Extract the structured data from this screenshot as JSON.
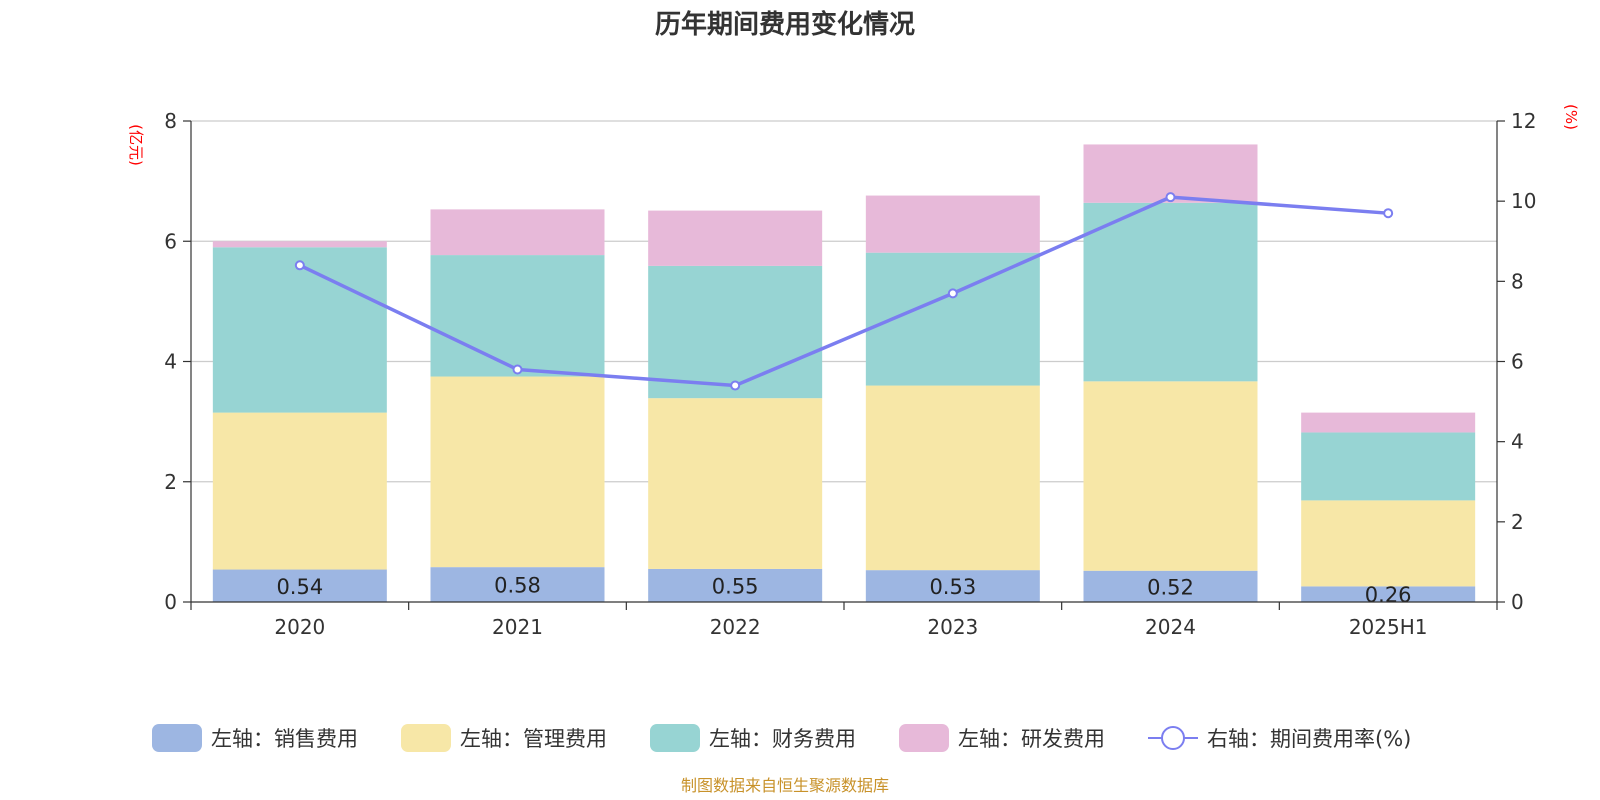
{
  "chart_data": {
    "type": "bar",
    "title": "历年期间费用变化情况",
    "categories": [
      "2020",
      "2021",
      "2022",
      "2023",
      "2024",
      "2025H1"
    ],
    "left_axis": {
      "unit": "(亿元)",
      "ylim": [
        0,
        8
      ],
      "ticks": [
        "0",
        "2",
        "4",
        "6",
        "8"
      ]
    },
    "right_axis": {
      "unit": "(%)",
      "ylim": [
        0,
        12
      ],
      "ticks": [
        "0",
        "2",
        "4",
        "6",
        "8",
        "10",
        "12"
      ]
    },
    "series": [
      {
        "name": "左轴：销售费用",
        "axis": "left",
        "stack": true,
        "color": "#9db6e2",
        "values": [
          0.54,
          0.58,
          0.55,
          0.53,
          0.52,
          0.26
        ],
        "labels": [
          "0.54",
          "0.58",
          "0.55",
          "0.53",
          "0.52",
          "0.26"
        ]
      },
      {
        "name": "左轴：管理费用",
        "axis": "left",
        "stack": true,
        "color": "#f7e7a7",
        "values": [
          2.61,
          3.17,
          2.84,
          3.07,
          3.15,
          1.43
        ]
      },
      {
        "name": "左轴：财务费用",
        "axis": "left",
        "stack": true,
        "color": "#97d4d3",
        "values": [
          2.75,
          2.02,
          2.2,
          2.21,
          2.97,
          1.13
        ]
      },
      {
        "name": "左轴：研发费用",
        "axis": "left",
        "stack": true,
        "color": "#e7b9d9",
        "values": [
          0.1,
          0.76,
          0.92,
          0.95,
          0.97,
          0.33
        ]
      },
      {
        "name": "右轴：期间费用率(%)",
        "axis": "right",
        "type": "line",
        "color": "#7b7ef0",
        "values": [
          8.4,
          5.8,
          5.4,
          7.7,
          10.1,
          9.7
        ]
      }
    ],
    "grid": true,
    "legend_position": "bottom"
  },
  "source_text": "制图数据来自恒生聚源数据库"
}
